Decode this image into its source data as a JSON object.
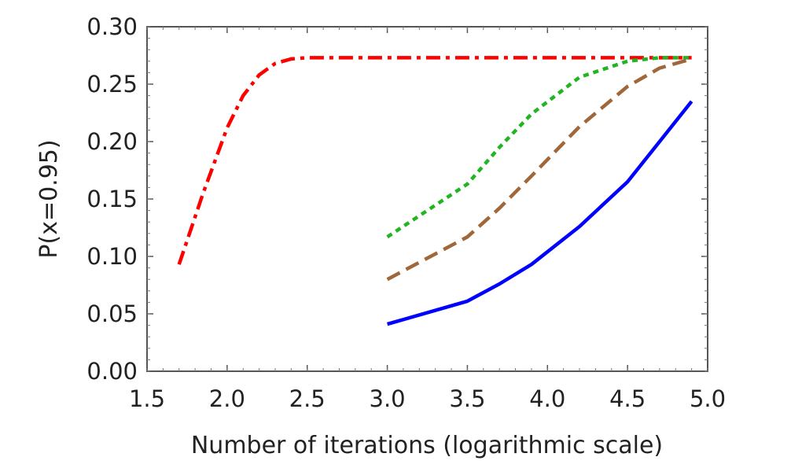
{
  "chart_data": {
    "type": "line",
    "title": "",
    "xlabel": "Number of iterations (logarithmic scale)",
    "ylabel": "P(x=0.95)",
    "xlim": [
      1.5,
      5.0
    ],
    "ylim": [
      0.0,
      0.3
    ],
    "xticks": [
      1.5,
      2.0,
      2.5,
      3.0,
      3.5,
      4.0,
      4.5,
      5.0
    ],
    "xtick_labels": [
      "1.5",
      "2.0",
      "2.5",
      "3.0",
      "3.5",
      "4.0",
      "4.5",
      "5.0"
    ],
    "yticks": [
      0.0,
      0.05,
      0.1,
      0.15,
      0.2,
      0.25,
      0.3
    ],
    "ytick_labels": [
      "0.00",
      "0.05",
      "0.10",
      "0.15",
      "0.20",
      "0.25",
      "0.30"
    ],
    "grid": false,
    "legend": null,
    "series": [
      {
        "name": "red-dashdot",
        "color": "#ff0000",
        "style": "dashdot",
        "x": [
          1.7,
          1.85,
          2.0,
          2.1,
          2.2,
          2.3,
          2.4,
          2.5,
          3.0,
          3.5,
          4.0,
          4.5,
          4.9
        ],
        "y": [
          0.093,
          0.155,
          0.212,
          0.24,
          0.258,
          0.268,
          0.272,
          0.273,
          0.273,
          0.273,
          0.273,
          0.273,
          0.273
        ]
      },
      {
        "name": "green-dotted",
        "color": "#22b522",
        "style": "dotted",
        "x": [
          3.0,
          3.5,
          3.7,
          3.9,
          4.2,
          4.5,
          4.7,
          4.9
        ],
        "y": [
          0.117,
          0.163,
          0.195,
          0.224,
          0.256,
          0.27,
          0.273,
          0.273
        ]
      },
      {
        "name": "brown-dashed",
        "color": "#a0683a",
        "style": "dashed",
        "x": [
          3.0,
          3.5,
          3.7,
          3.9,
          4.2,
          4.5,
          4.7,
          4.9
        ],
        "y": [
          0.08,
          0.117,
          0.142,
          0.17,
          0.213,
          0.248,
          0.264,
          0.272
        ]
      },
      {
        "name": "blue-solid",
        "color": "#0000ff",
        "style": "solid",
        "x": [
          3.0,
          3.5,
          3.7,
          3.9,
          4.2,
          4.5,
          4.7,
          4.9
        ],
        "y": [
          0.041,
          0.061,
          0.076,
          0.093,
          0.126,
          0.165,
          0.2,
          0.235
        ]
      }
    ]
  }
}
